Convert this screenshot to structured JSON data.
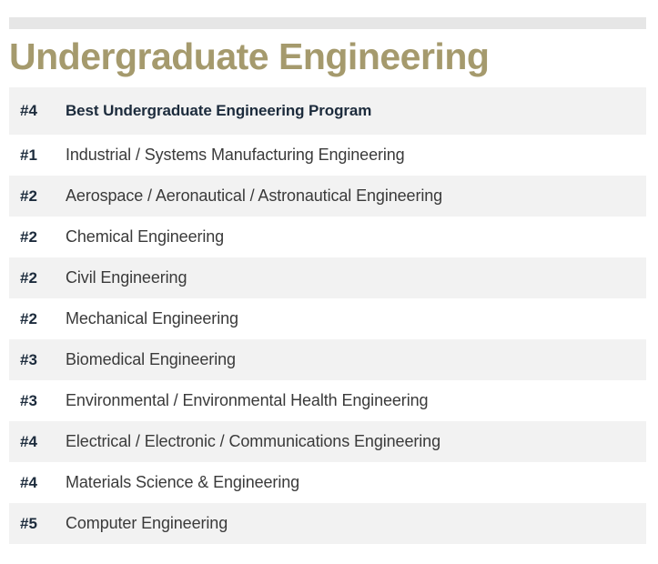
{
  "title": "Undergraduate Engineering",
  "header": {
    "rank": "#4",
    "program": "Best Undergraduate Engineering Program"
  },
  "rows": [
    {
      "rank": "#1",
      "program": "Industrial / Systems Manufacturing Engineering"
    },
    {
      "rank": "#2",
      "program": "Aerospace / Aeronautical / Astronautical Engineering"
    },
    {
      "rank": "#2",
      "program": "Chemical Engineering"
    },
    {
      "rank": "#2",
      "program": "Civil Engineering"
    },
    {
      "rank": "#2",
      "program": "Mechanical Engineering"
    },
    {
      "rank": "#3",
      "program": "Biomedical Engineering"
    },
    {
      "rank": "#3",
      "program": "Environmental / Environmental Health Engineering"
    },
    {
      "rank": "#4",
      "program": "Electrical / Electronic / Communications Engineering"
    },
    {
      "rank": "#4",
      "program": "Materials Science & Engineering"
    },
    {
      "rank": "#5",
      "program": "Computer Engineering"
    }
  ],
  "colors": {
    "title": "#a59a6d",
    "rank_text": "#1c2b3c",
    "row_shade": "#f2f2f2"
  }
}
